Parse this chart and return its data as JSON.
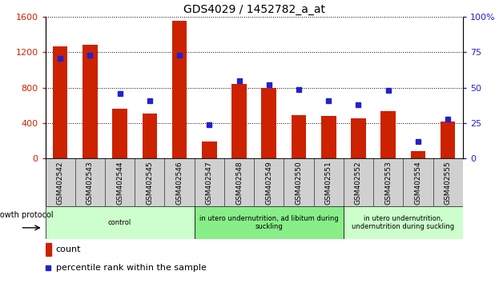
{
  "title": "GDS4029 / 1452782_a_at",
  "categories": [
    "GSM402542",
    "GSM402543",
    "GSM402544",
    "GSM402545",
    "GSM402546",
    "GSM402547",
    "GSM402548",
    "GSM402549",
    "GSM402550",
    "GSM402551",
    "GSM402552",
    "GSM402553",
    "GSM402554",
    "GSM402555"
  ],
  "counts": [
    1270,
    1290,
    560,
    510,
    1560,
    190,
    840,
    800,
    490,
    480,
    450,
    540,
    80,
    420
  ],
  "percentiles": [
    71,
    73,
    46,
    41,
    73,
    24,
    55,
    52,
    49,
    41,
    38,
    48,
    12,
    28
  ],
  "bar_color": "#CC2200",
  "dot_color": "#2222CC",
  "ylim_left": [
    0,
    1600
  ],
  "ylim_right": [
    0,
    100
  ],
  "yticks_left": [
    0,
    400,
    800,
    1200,
    1600
  ],
  "yticks_right": [
    0,
    25,
    50,
    75,
    100
  ],
  "grid_color": "black",
  "plot_bg": "#ffffff",
  "fig_bg": "#ffffff",
  "groups": [
    {
      "label": "control",
      "start": 0,
      "end": 4,
      "color": "#ccffcc"
    },
    {
      "label": "in utero undernutrition, ad libitum during\nsuckling",
      "start": 5,
      "end": 9,
      "color": "#88ee88"
    },
    {
      "label": "in utero undernutrition,\nundernutrition during suckling",
      "start": 10,
      "end": 13,
      "color": "#ccffcc"
    }
  ],
  "growth_protocol_label": "growth protocol",
  "legend_count_label": "count",
  "legend_percentile_label": "percentile rank within the sample",
  "title_fontsize": 10,
  "axis_color_left": "#CC2200",
  "axis_color_right": "#2222CC"
}
